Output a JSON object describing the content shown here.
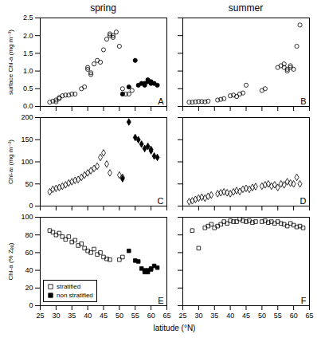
{
  "chart_data": [
    {
      "type": "scatter",
      "title": "spring",
      "ylabel": "surface Chl-a (mg m⁻³)",
      "xlim": [
        25,
        65
      ],
      "xticks": [
        25,
        30,
        35,
        40,
        45,
        50,
        55,
        60,
        65
      ],
      "ylim": [
        0,
        2.5
      ],
      "yticks": [
        {
          "value": 0,
          "label": "0.0"
        },
        0.5,
        {
          "value": 1,
          "label": "1.0"
        },
        1.5,
        {
          "value": 2,
          "label": "2.0"
        },
        2.5
      ],
      "tick_labels": "y",
      "annotations": [
        {
          "text": "A"
        }
      ],
      "series": [
        {
          "name": "stratified",
          "color": "black",
          "marker": "circle-open",
          "x": [
            28,
            29,
            30,
            30,
            31,
            31,
            32,
            33,
            34,
            35,
            36,
            38,
            39,
            40,
            40,
            41,
            41,
            42,
            43,
            44,
            45,
            46,
            47,
            47,
            48,
            48,
            49,
            50,
            51,
            52,
            53,
            54
          ],
          "values": [
            0.12,
            0.15,
            0.13,
            0.18,
            0.22,
            0.25,
            0.3,
            0.32,
            0.32,
            0.35,
            0.35,
            0.5,
            0.55,
            1.1,
            1.05,
            0.95,
            0.9,
            1.2,
            1.3,
            1.25,
            1.6,
            1.9,
            2.0,
            2.05,
            1.95,
            2.0,
            2.1,
            1.7,
            0.5,
            0.35,
            0.35,
            0.45
          ]
        },
        {
          "name": "non stratified",
          "color": "black",
          "marker": "circle",
          "x": [
            51,
            53,
            55,
            56,
            57,
            58,
            58,
            59,
            59,
            60,
            60,
            61,
            62
          ],
          "values": [
            0.35,
            0.55,
            1.3,
            0.6,
            0.65,
            0.6,
            0.65,
            0.7,
            0.75,
            0.65,
            0.7,
            0.65,
            0.6
          ]
        }
      ]
    },
    {
      "type": "scatter",
      "title": "summer",
      "xlim": [
        25,
        65
      ],
      "xticks": [
        25,
        30,
        35,
        40,
        45,
        50,
        55,
        60,
        65
      ],
      "ylim": [
        0,
        2.5
      ],
      "yticks": [
        {
          "value": 0,
          "label": "0.0"
        },
        0.5,
        {
          "value": 1,
          "label": "1.0"
        },
        1.5,
        {
          "value": 2,
          "label": "2.0"
        },
        2.5
      ],
      "tick_labels": false,
      "annotations": [
        {
          "text": "B"
        }
      ],
      "series": [
        {
          "name": "stratified",
          "color": "black",
          "marker": "circle-open",
          "x": [
            27,
            28,
            29,
            30,
            31,
            32,
            33,
            36,
            37,
            38,
            40,
            41,
            42,
            43,
            44,
            45,
            50,
            51,
            55,
            56,
            57,
            57,
            58,
            58,
            59,
            59,
            60,
            61,
            62
          ],
          "values": [
            0.12,
            0.12,
            0.13,
            0.14,
            0.14,
            0.13,
            0.15,
            0.18,
            0.2,
            0.22,
            0.3,
            0.32,
            0.28,
            0.35,
            0.38,
            0.6,
            0.45,
            0.5,
            1.1,
            1.15,
            1.2,
            1.1,
            1.0,
            1.05,
            1.1,
            1.15,
            1.05,
            1.7,
            2.3
          ]
        }
      ]
    },
    {
      "type": "scatter",
      "ylabel": "Chl-aₜ (mg m⁻²)",
      "xlim": [
        25,
        65
      ],
      "xticks": [
        25,
        30,
        35,
        40,
        45,
        50,
        55,
        60,
        65
      ],
      "ylim": [
        0,
        200
      ],
      "yticks": [
        0,
        50,
        100,
        150,
        200
      ],
      "tick_labels": "y",
      "annotations": [
        {
          "text": "C"
        }
      ],
      "series": [
        {
          "name": "stratified",
          "color": "black",
          "marker": "diamond-open",
          "x": [
            28,
            29,
            30,
            31,
            32,
            33,
            34,
            35,
            36,
            37,
            38,
            39,
            40,
            41,
            42,
            43,
            44,
            45,
            46,
            47,
            50,
            51
          ],
          "values": [
            32,
            38,
            40,
            42,
            45,
            48,
            52,
            55,
            58,
            60,
            65,
            70,
            75,
            80,
            85,
            90,
            110,
            120,
            95,
            75,
            70,
            65
          ]
        },
        {
          "name": "non stratified",
          "color": "black",
          "marker": "diamond",
          "x": [
            51,
            53,
            55,
            56,
            57,
            58,
            59,
            60,
            60,
            61,
            62
          ],
          "values": [
            62,
            190,
            155,
            150,
            140,
            130,
            135,
            125,
            128,
            113,
            110
          ]
        }
      ]
    },
    {
      "type": "scatter",
      "xlim": [
        25,
        65
      ],
      "xticks": [
        25,
        30,
        35,
        40,
        45,
        50,
        55,
        60,
        65
      ],
      "ylim": [
        0,
        200
      ],
      "yticks": [
        0,
        50,
        100,
        150,
        200
      ],
      "tick_labels": false,
      "annotations": [
        {
          "text": "D"
        }
      ],
      "series": [
        {
          "name": "stratified",
          "color": "black",
          "marker": "diamond-open",
          "x": [
            27,
            28,
            29,
            30,
            31,
            32,
            33,
            34,
            36,
            37,
            38,
            39,
            40,
            41,
            42,
            43,
            44,
            45,
            46,
            47,
            48,
            50,
            51,
            52,
            53,
            54,
            55,
            56,
            57,
            58,
            59,
            60,
            61,
            62
          ],
          "values": [
            10,
            12,
            15,
            18,
            20,
            18,
            22,
            25,
            28,
            30,
            32,
            30,
            28,
            32,
            35,
            33,
            38,
            40,
            38,
            42,
            44,
            45,
            48,
            50,
            45,
            48,
            42,
            50,
            48,
            55,
            52,
            50,
            65,
            50
          ]
        }
      ]
    },
    {
      "type": "scatter",
      "ylabel": "Chl-a (% Zₑᵤ)",
      "xlabel": "latitude (°N)",
      "xlim": [
        25,
        65
      ],
      "xticks": [
        25,
        30,
        35,
        40,
        45,
        50,
        55,
        60,
        65
      ],
      "ylim": [
        0,
        100
      ],
      "yticks": [
        0,
        20,
        40,
        60,
        80,
        100
      ],
      "legend": "lower left",
      "annotations": [
        {
          "text": "E"
        }
      ],
      "series": [
        {
          "name": "stratified",
          "color": "black",
          "marker": "square-open",
          "x": [
            28,
            29,
            30,
            31,
            32,
            33,
            34,
            35,
            36,
            37,
            38,
            39,
            40,
            41,
            42,
            43,
            44,
            45,
            46,
            47,
            50,
            51
          ],
          "values": [
            85,
            83,
            80,
            82,
            78,
            75,
            78,
            72,
            74,
            68,
            70,
            65,
            62,
            60,
            64,
            58,
            60,
            55,
            53,
            52,
            52,
            55
          ]
        },
        {
          "name": "non stratified",
          "color": "black",
          "marker": "square",
          "x": [
            53,
            55,
            56,
            57,
            58,
            58,
            59,
            59,
            60,
            60,
            61,
            62
          ],
          "values": [
            62,
            51,
            50,
            42,
            40,
            38,
            38,
            40,
            42,
            41,
            45,
            43
          ]
        }
      ]
    },
    {
      "type": "scatter",
      "xlim": [
        25,
        65
      ],
      "xticks": [
        25,
        30,
        35,
        40,
        45,
        50,
        55,
        60,
        65
      ],
      "ylim": [
        0,
        100
      ],
      "yticks": [
        0,
        20,
        40,
        60,
        80,
        100
      ],
      "tick_labels": "x",
      "annotations": [
        {
          "text": "F"
        }
      ],
      "series": [
        {
          "name": "stratified",
          "color": "black",
          "marker": "square-open",
          "x": [
            28,
            30,
            32,
            33,
            34,
            35,
            36,
            37,
            38,
            39,
            40,
            41,
            42,
            43,
            44,
            45,
            46,
            47,
            48,
            50,
            51,
            52,
            53,
            54,
            55,
            56,
            57,
            58,
            59,
            60,
            61,
            62,
            63
          ],
          "values": [
            85,
            65,
            88,
            90,
            92,
            88,
            90,
            92,
            95,
            93,
            96,
            95,
            95,
            98,
            96,
            95,
            96,
            94,
            95,
            95,
            96,
            94,
            95,
            93,
            95,
            93,
            92,
            90,
            93,
            91,
            89,
            90,
            88
          ]
        }
      ]
    }
  ]
}
